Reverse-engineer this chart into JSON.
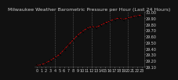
{
  "title": "Milwaukee Weather Barometric Pressure per Hour (Last 24 Hours)",
  "x": [
    0,
    1,
    2,
    3,
    4,
    5,
    6,
    7,
    8,
    9,
    10,
    11,
    12,
    13,
    14,
    15,
    16,
    17,
    18,
    19,
    20,
    21,
    22,
    23
  ],
  "y": [
    29.12,
    29.13,
    29.16,
    29.2,
    29.25,
    29.3,
    29.38,
    29.46,
    29.54,
    29.62,
    29.68,
    29.73,
    29.76,
    29.75,
    29.78,
    29.82,
    29.85,
    29.88,
    29.9,
    29.88,
    29.9,
    29.92,
    29.94,
    29.95
  ],
  "ylim": [
    29.1,
    30.0
  ],
  "xlim": [
    -0.5,
    23.5
  ],
  "yticks": [
    29.1,
    29.2,
    29.3,
    29.4,
    29.5,
    29.6,
    29.7,
    29.8,
    29.9,
    30.0
  ],
  "ytick_labels": [
    "29.10",
    "29.20",
    "29.30",
    "29.40",
    "29.50",
    "29.60",
    "29.70",
    "29.80",
    "29.90",
    "30.00"
  ],
  "xtick_positions": [
    0,
    1,
    2,
    3,
    4,
    5,
    6,
    7,
    8,
    9,
    10,
    11,
    12,
    13,
    14,
    15,
    16,
    17,
    18,
    19,
    20,
    21,
    22,
    23
  ],
  "xtick_labels": [
    "0",
    "1",
    "2",
    "3",
    "4",
    "5",
    "6",
    "7",
    "8",
    "9",
    "10",
    "11",
    "12",
    "13",
    "14",
    "15",
    "16",
    "17",
    "18",
    "19",
    "20",
    "21",
    "22",
    "23"
  ],
  "line_color": "#ff0000",
  "marker_color": "#000000",
  "bg_color": "#111111",
  "plot_bg_color": "#111111",
  "grid_color": "#555555",
  "title_color": "#cccccc",
  "tick_color": "#cccccc",
  "title_fontsize": 4.5,
  "tick_fontsize": 3.5,
  "vgrid_positions": [
    4,
    8,
    12,
    16,
    20
  ]
}
